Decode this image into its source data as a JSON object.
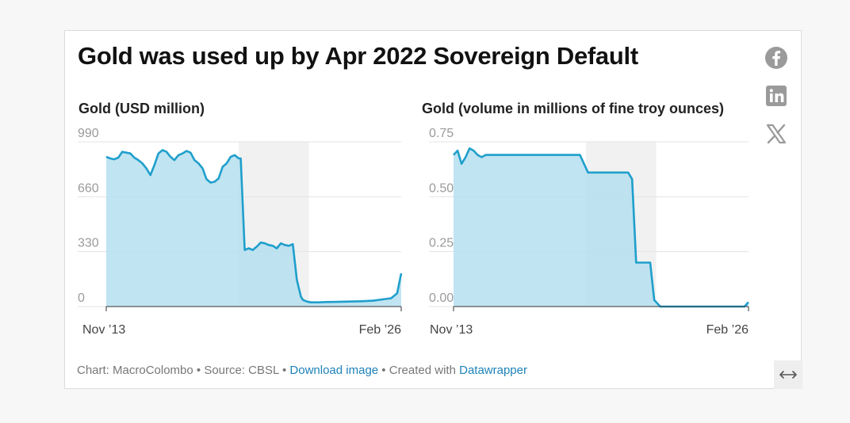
{
  "title": "Gold was used up by Apr 2022 Sovereign Default",
  "footer": {
    "chart_by": "Chart: MacroColombo",
    "sep": " • ",
    "source": "Source: CBSL",
    "download": "Download image",
    "created": "Created with ",
    "datawrapper": "Datawrapper"
  },
  "social": [
    "facebook-icon",
    "linkedin-icon",
    "x-icon"
  ],
  "colors": {
    "line": "#1f9fcc",
    "fill": "#b5dfee",
    "shade": "#e8e8e8",
    "link": "#1d82b8"
  },
  "chart_data": [
    {
      "type": "area",
      "title": "Gold (USD million)",
      "x_range": [
        "2013-11",
        "2026-02"
      ],
      "x_tick_labels": [
        "Nov ’13",
        "Feb ’26"
      ],
      "ylim": [
        0,
        990
      ],
      "y_ticks": [
        0,
        330,
        660,
        990
      ],
      "y_tick_labels": [
        "0",
        "330",
        "660",
        "990"
      ],
      "shaded_period": [
        "2019-05",
        "2022-04"
      ],
      "grid": true,
      "series": [
        {
          "x": [
            "2013-11",
            "2014-01",
            "2014-03",
            "2014-05",
            "2014-07",
            "2014-09",
            "2014-11",
            "2015-01",
            "2015-03",
            "2015-05",
            "2015-07",
            "2015-09",
            "2015-11",
            "2016-01",
            "2016-03",
            "2016-05",
            "2016-07",
            "2016-09",
            "2016-11",
            "2017-01",
            "2017-03",
            "2017-05",
            "2017-07",
            "2017-09",
            "2017-11",
            "2018-01",
            "2018-03",
            "2018-05",
            "2018-07",
            "2018-09",
            "2018-11",
            "2019-01",
            "2019-03",
            "2019-05",
            "2019-06",
            "2019-08",
            "2019-10",
            "2019-12",
            "2020-02",
            "2020-04",
            "2020-06",
            "2020-08",
            "2020-10",
            "2020-12",
            "2021-02",
            "2021-04",
            "2021-06",
            "2021-08",
            "2021-10",
            "2021-12",
            "2022-01",
            "2022-03",
            "2022-05",
            "2022-07",
            "2022-09",
            "2022-12",
            "2023-06",
            "2023-12",
            "2024-06",
            "2024-12",
            "2025-06",
            "2025-09",
            "2025-12",
            "2026-02"
          ],
          "values": [
            900,
            890,
            885,
            895,
            930,
            925,
            920,
            895,
            880,
            860,
            830,
            790,
            850,
            920,
            940,
            930,
            900,
            880,
            910,
            920,
            935,
            925,
            880,
            860,
            830,
            765,
            745,
            750,
            770,
            840,
            860,
            900,
            910,
            890,
            890,
            340,
            350,
            340,
            360,
            385,
            380,
            370,
            365,
            350,
            380,
            370,
            365,
            375,
            160,
            60,
            40,
            30,
            25,
            25,
            25,
            27,
            28,
            30,
            32,
            35,
            45,
            50,
            80,
            200
          ]
        }
      ]
    },
    {
      "type": "area",
      "title": "Gold (volume in millions of fine troy ounces)",
      "x_range": [
        "2013-11",
        "2026-02"
      ],
      "x_tick_labels": [
        "Nov ’13",
        "Feb ’26"
      ],
      "ylim": [
        0,
        0.75
      ],
      "y_ticks": [
        0,
        0.25,
        0.5,
        0.75
      ],
      "y_tick_labels": [
        "0.00",
        "0.25",
        "0.50",
        "0.75"
      ],
      "shaded_period": [
        "2019-05",
        "2022-04"
      ],
      "grid": true,
      "series": [
        {
          "x": [
            "2013-11",
            "2014-01",
            "2014-03",
            "2014-05",
            "2014-07",
            "2014-09",
            "2014-11",
            "2015-01",
            "2015-03",
            "2015-06",
            "2019-02",
            "2019-06",
            "2020-02",
            "2021-02",
            "2021-04",
            "2021-06",
            "2021-07",
            "2021-09",
            "2021-10",
            "2022-01",
            "2022-03",
            "2022-06",
            "2025-12",
            "2026-02"
          ],
          "values": [
            0.69,
            0.71,
            0.65,
            0.68,
            0.72,
            0.71,
            0.69,
            0.68,
            0.69,
            0.69,
            0.69,
            0.61,
            0.61,
            0.61,
            0.58,
            0.2,
            0.2,
            0.2,
            0.2,
            0.2,
            0.03,
            0.0,
            0.0,
            0.02
          ]
        }
      ]
    }
  ]
}
